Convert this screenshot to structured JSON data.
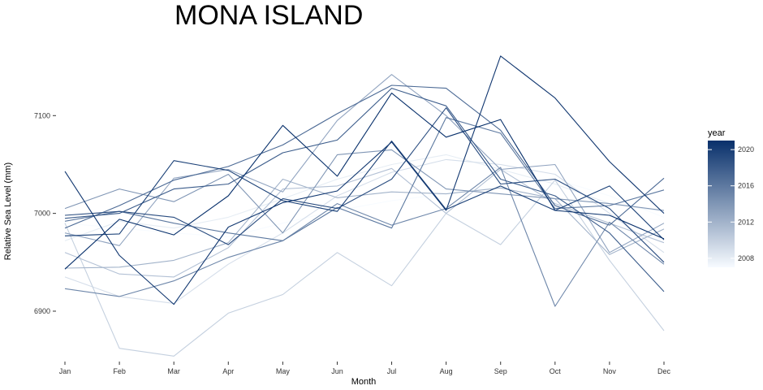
{
  "chart_data": {
    "type": "line",
    "title": "MONA ISLAND",
    "xlabel": "Month",
    "ylabel": "Relative Sea Level (mm)",
    "categories": [
      "Jan",
      "Feb",
      "Mar",
      "Apr",
      "May",
      "Jun",
      "Jul",
      "Aug",
      "Sep",
      "Oct",
      "Nov",
      "Dec"
    ],
    "ylim": [
      6836,
      7185
    ],
    "yticks": [
      6900,
      7000,
      7100
    ],
    "grid": false,
    "legend": {
      "title": "year",
      "type": "colorbar",
      "position": "right",
      "range": [
        2007,
        2021
      ],
      "ticks": [
        2008,
        2012,
        2016,
        2020
      ],
      "low_color": "#f7fbff",
      "high_color": "#08306b"
    },
    "series": [
      {
        "year": 2007,
        "values": [
          6990,
          6985,
          6980,
          6976,
          6990,
          7003,
          7013,
          7020,
          7028,
          7035,
          7018,
          6996
        ]
      },
      {
        "year": 2008,
        "values": [
          6972,
          6992,
          6985,
          6996,
          7015,
          7035,
          7050,
          7060,
          7045,
          7030,
          7010,
          7002
        ]
      },
      {
        "year": 2009,
        "values": [
          6935,
          6915,
          6908,
          6948,
          6980,
          7018,
          7042,
          7055,
          7050,
          7040,
          7000,
          6960
        ]
      },
      {
        "year": 2010,
        "values": [
          6990,
          6862,
          6854,
          6898,
          6917,
          6960,
          6926,
          7000,
          6968,
          7034,
          6952,
          6880
        ]
      },
      {
        "year": 2011,
        "values": [
          6960,
          6938,
          6935,
          6965,
          7025,
          7028,
          7046,
          7000,
          7045,
          7010,
          6990,
          6970
        ]
      },
      {
        "year": 2012,
        "values": [
          6944,
          6945,
          6952,
          6970,
          7035,
          7016,
          7022,
          7020,
          7026,
          7015,
          6958,
          6984
        ]
      },
      {
        "year": 2013,
        "values": [
          6980,
          6967,
          7036,
          7045,
          7022,
          7095,
          7142,
          7100,
          7045,
          7050,
          6960,
          6990
        ]
      },
      {
        "year": 2014,
        "values": [
          7005,
          7025,
          7012,
          7040,
          6980,
          7060,
          7065,
          7025,
          7020,
          7015,
          7010,
          7003
        ]
      },
      {
        "year": 2015,
        "values": [
          6923,
          6915,
          6931,
          6955,
          6972,
          7010,
          6988,
          7005,
          7047,
          6905,
          6991,
          6948
        ]
      },
      {
        "year": 2016,
        "values": [
          6992,
          7002,
          6990,
          6980,
          6972,
          7006,
          6985,
          7098,
          7082,
          7005,
          7008,
          7024
        ]
      },
      {
        "year": 2017,
        "values": [
          6985,
          7008,
          7034,
          7048,
          7070,
          7102,
          7131,
          7128,
          7085,
          7008,
          6988,
          7036
        ]
      },
      {
        "year": 2018,
        "values": [
          6995,
          7000,
          7025,
          7030,
          7062,
          7075,
          7128,
          7110,
          7035,
          7018,
          6980,
          6920
        ]
      },
      {
        "year": 2019,
        "values": [
          6998,
          7002,
          6996,
          6968,
          7015,
          7005,
          7035,
          7108,
          7030,
          7035,
          7005,
          6950
        ]
      },
      {
        "year": 2020,
        "values": [
          6977,
          6979,
          7054,
          7044,
          7013,
          7002,
          7074,
          7004,
          7028,
          7003,
          7028,
          6973
        ]
      },
      {
        "year": 2020.5,
        "values": [
          7043,
          6957,
          6907,
          6986,
          7011,
          7023,
          7073,
          7003,
          7161,
          7118,
          7053,
          7000
        ]
      },
      {
        "year": 2021,
        "values": [
          6943,
          6994,
          6978,
          7018,
          7090,
          7038,
          7123,
          7078,
          7096,
          7003,
          6998,
          6974
        ]
      }
    ]
  }
}
